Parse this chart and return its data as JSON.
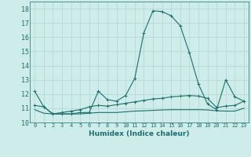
{
  "xlabel": "Humidex (Indice chaleur)",
  "background_color": "#ceecea",
  "grid_color": "#b8d8d6",
  "line_color": "#1e6e6e",
  "xlim": [
    -0.5,
    23.5
  ],
  "ylim": [
    10,
    18.5
  ],
  "yticks": [
    10,
    11,
    12,
    13,
    14,
    15,
    16,
    17,
    18
  ],
  "xticks": [
    0,
    1,
    2,
    3,
    4,
    5,
    6,
    7,
    8,
    9,
    10,
    11,
    12,
    13,
    14,
    15,
    16,
    17,
    18,
    19,
    20,
    21,
    22,
    23
  ],
  "series1_x": [
    0,
    1,
    2,
    3,
    4,
    5,
    6,
    7,
    8,
    9,
    10,
    11,
    12,
    13,
    14,
    15,
    16,
    17,
    18,
    19,
    20,
    21,
    22,
    23
  ],
  "series1_y": [
    12.2,
    11.1,
    10.6,
    10.6,
    10.6,
    10.7,
    10.7,
    12.2,
    11.6,
    11.5,
    11.9,
    13.1,
    16.3,
    17.85,
    17.8,
    17.5,
    16.8,
    14.9,
    12.7,
    11.3,
    10.9,
    13.0,
    11.8,
    11.5
  ],
  "series2_x": [
    0,
    1,
    2,
    3,
    4,
    5,
    6,
    7,
    8,
    9,
    10,
    11,
    12,
    13,
    14,
    15,
    16,
    17,
    18,
    19,
    20,
    21,
    22,
    23
  ],
  "series2_y": [
    11.2,
    11.1,
    10.6,
    10.7,
    10.8,
    10.9,
    11.1,
    11.2,
    11.15,
    11.25,
    11.35,
    11.45,
    11.55,
    11.65,
    11.7,
    11.8,
    11.85,
    11.9,
    11.85,
    11.7,
    11.05,
    11.15,
    11.2,
    11.5
  ],
  "series3_x": [
    0,
    1,
    2,
    3,
    4,
    5,
    6,
    7,
    8,
    9,
    10,
    11,
    12,
    13,
    14,
    15,
    16,
    17,
    18,
    19,
    20,
    21,
    22,
    23
  ],
  "series3_y": [
    10.9,
    10.65,
    10.6,
    10.6,
    10.6,
    10.6,
    10.65,
    10.7,
    10.7,
    10.7,
    10.75,
    10.8,
    10.82,
    10.85,
    10.88,
    10.9,
    10.9,
    10.9,
    10.9,
    10.88,
    10.82,
    10.8,
    10.8,
    11.0
  ]
}
